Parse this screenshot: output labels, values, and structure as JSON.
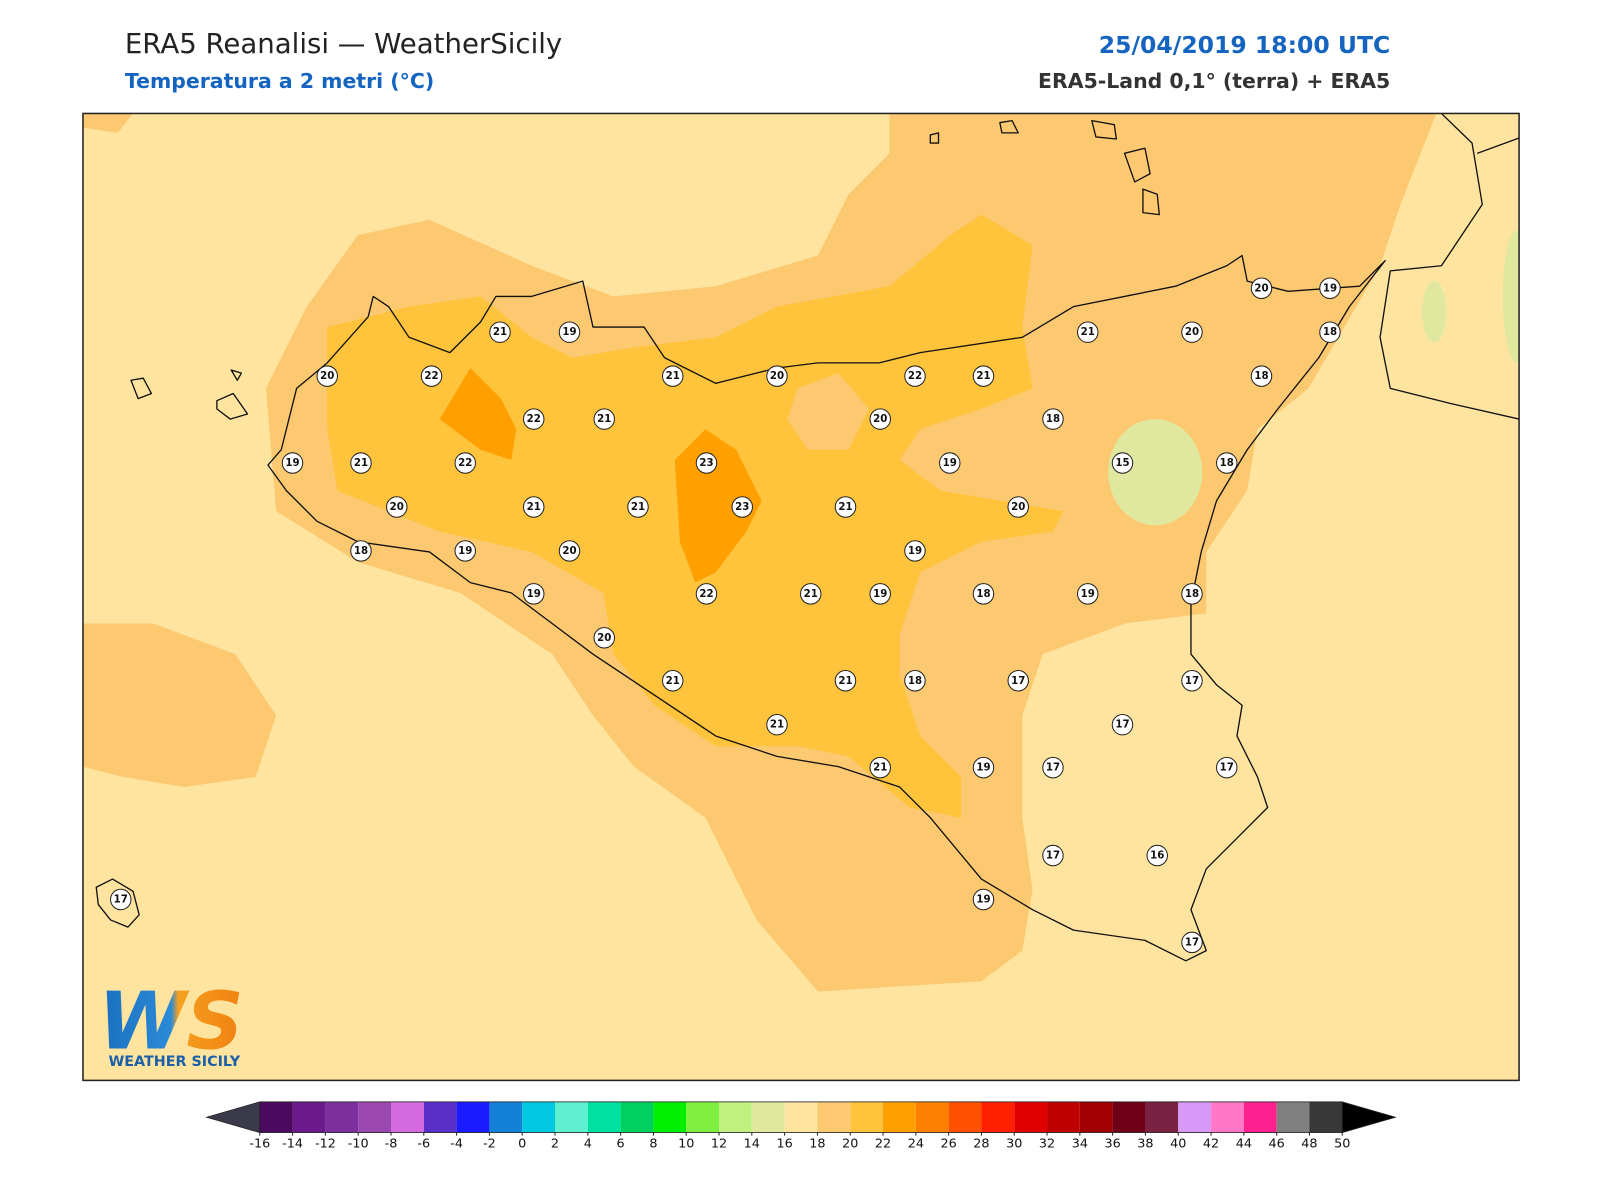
{
  "header": {
    "title": "ERA5 Reanalisi — WeatherSicily",
    "subtitle": "Temperatura a 2 metri (°C)",
    "datetime": "25/04/2019 18:00 UTC",
    "source": "ERA5-Land 0,1° (terra) + ERA5"
  },
  "stations": [
    21,
    19,
    20,
    22,
    21,
    20,
    22,
    21,
    21,
    20,
    20,
    19,
    18,
    18,
    22,
    21,
    20,
    18,
    19,
    21,
    22,
    23,
    19,
    15,
    18,
    20,
    21,
    21,
    23,
    21,
    20,
    18,
    19,
    20,
    19,
    19,
    22,
    21,
    19,
    18,
    19,
    18,
    20,
    21,
    21,
    18,
    17,
    17,
    17,
    21,
    21,
    19,
    17,
    17,
    17,
    16,
    19,
    17,
    17
  ],
  "colorbar": {
    "ticks": [
      -16,
      -14,
      -12,
      -10,
      -8,
      -6,
      -4,
      -2,
      0,
      2,
      4,
      6,
      8,
      10,
      12,
      14,
      16,
      18,
      20,
      22,
      24,
      26,
      28,
      30,
      32,
      34,
      36,
      38,
      40,
      42,
      44,
      46,
      48,
      50
    ],
    "colors": [
      "#4b0a5e",
      "#6a1a8a",
      "#7e2f9e",
      "#9a47b0",
      "#d56ae0",
      "#5a2ec8",
      "#1a1aff",
      "#1580d8",
      "#00c8e0",
      "#5ef0d0",
      "#00e0a0",
      "#00d060",
      "#00f000",
      "#80f040",
      "#c0f080",
      "#e0e8a0",
      "#ffe4a0",
      "#fcc870",
      "#ffc43c",
      "#ffa000",
      "#ff8000",
      "#ff5000",
      "#ff2000",
      "#e00000",
      "#c00000",
      "#a00000",
      "#700018",
      "#7a2040",
      "#d898f8",
      "#ff78c8",
      "#ff2090",
      "#808080",
      "#383838"
    ],
    "under_color": "#3a3a4a",
    "over_color": "#000000"
  },
  "logo": {
    "mark": "WS",
    "text": "WEATHER SICILY"
  }
}
